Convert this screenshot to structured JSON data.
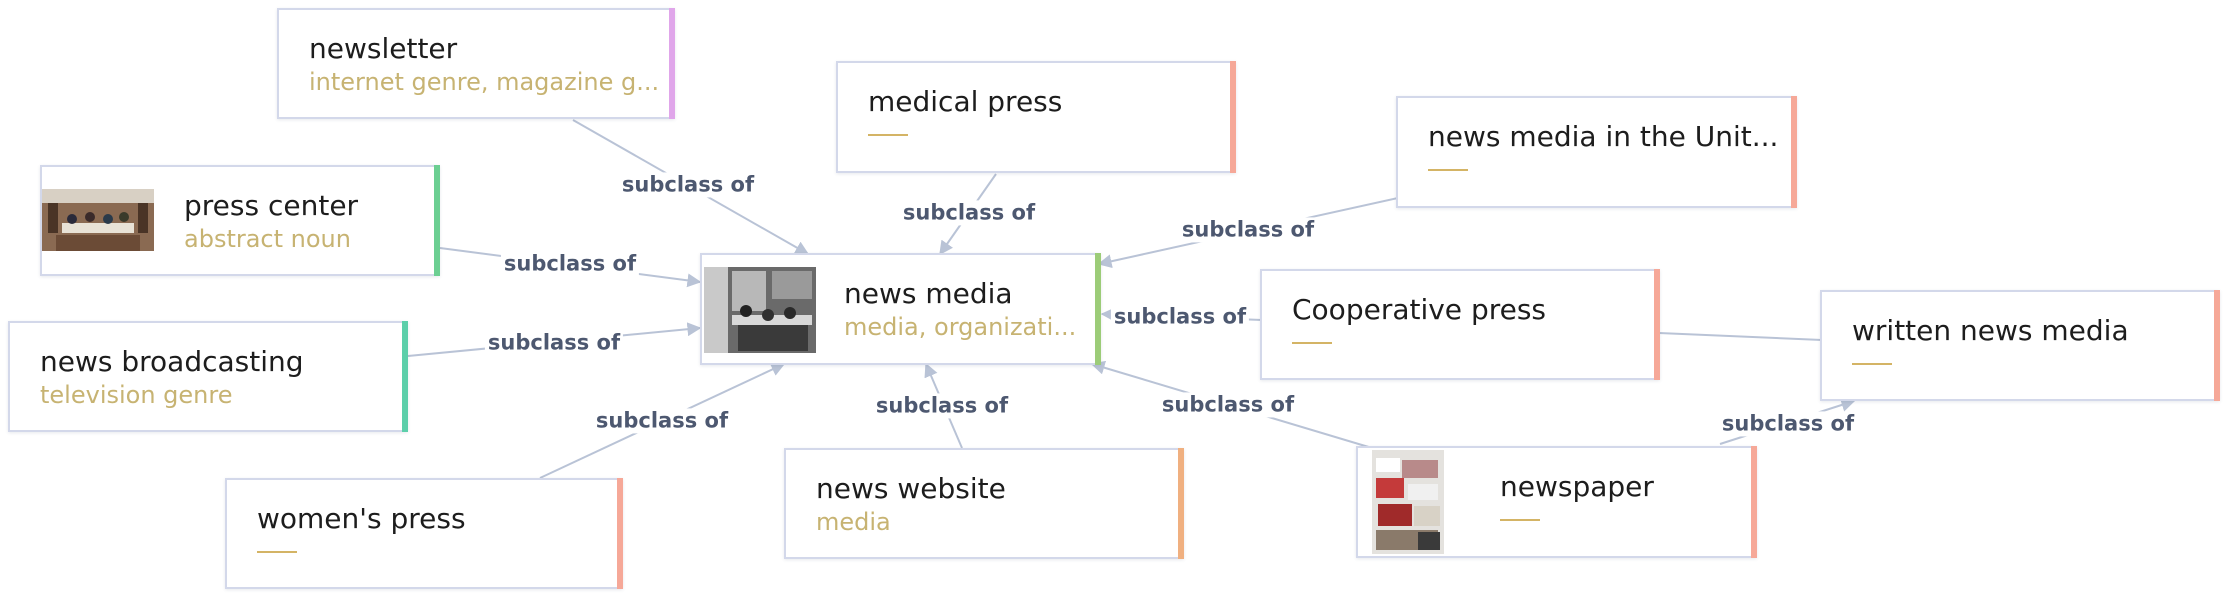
{
  "edge_label": "subclass of",
  "colors": {
    "edge": "#b9c3d6",
    "label": "#4d5870",
    "title": "#1d1d1d",
    "subtitle": "#c7b372",
    "accent_newsletter": "#e0a6ea",
    "accent_press_center": "#6ccf92",
    "accent_news_broadcasting": "#5ccfaa",
    "accent_news_media": "#9ccc78",
    "accent_default": "#f6a898",
    "accent_news_website": "#f0b080"
  },
  "nodes": {
    "news_media": {
      "title": "news media",
      "subtitle": "media, organizati..."
    },
    "newsletter": {
      "title": "newsletter",
      "subtitle": "internet genre, magazine g..."
    },
    "press_center": {
      "title": "press center",
      "subtitle": "abstract noun"
    },
    "news_broadcasting": {
      "title": "news broadcasting",
      "subtitle": "television genre"
    },
    "womens_press": {
      "title": "women's press"
    },
    "medical_press": {
      "title": "medical press"
    },
    "news_website": {
      "title": "news website",
      "subtitle": "media"
    },
    "news_media_unit": {
      "title": "news media in the Unit..."
    },
    "cooperative_press": {
      "title": "Cooperative press"
    },
    "newspaper": {
      "title": "newspaper"
    },
    "written_news_media": {
      "title": "written news media"
    }
  },
  "edges": [
    {
      "from": "newsletter",
      "to": "news_media"
    },
    {
      "from": "press_center",
      "to": "news_media"
    },
    {
      "from": "news_broadcasting",
      "to": "news_media"
    },
    {
      "from": "womens_press",
      "to": "news_media"
    },
    {
      "from": "medical_press",
      "to": "news_media"
    },
    {
      "from": "news_website",
      "to": "news_media"
    },
    {
      "from": "news_media_unit",
      "to": "news_media"
    },
    {
      "from": "cooperative_press",
      "to": "news_media"
    },
    {
      "from": "newspaper",
      "to": "news_media"
    },
    {
      "from": "newspaper",
      "to": "written_news_media"
    }
  ]
}
